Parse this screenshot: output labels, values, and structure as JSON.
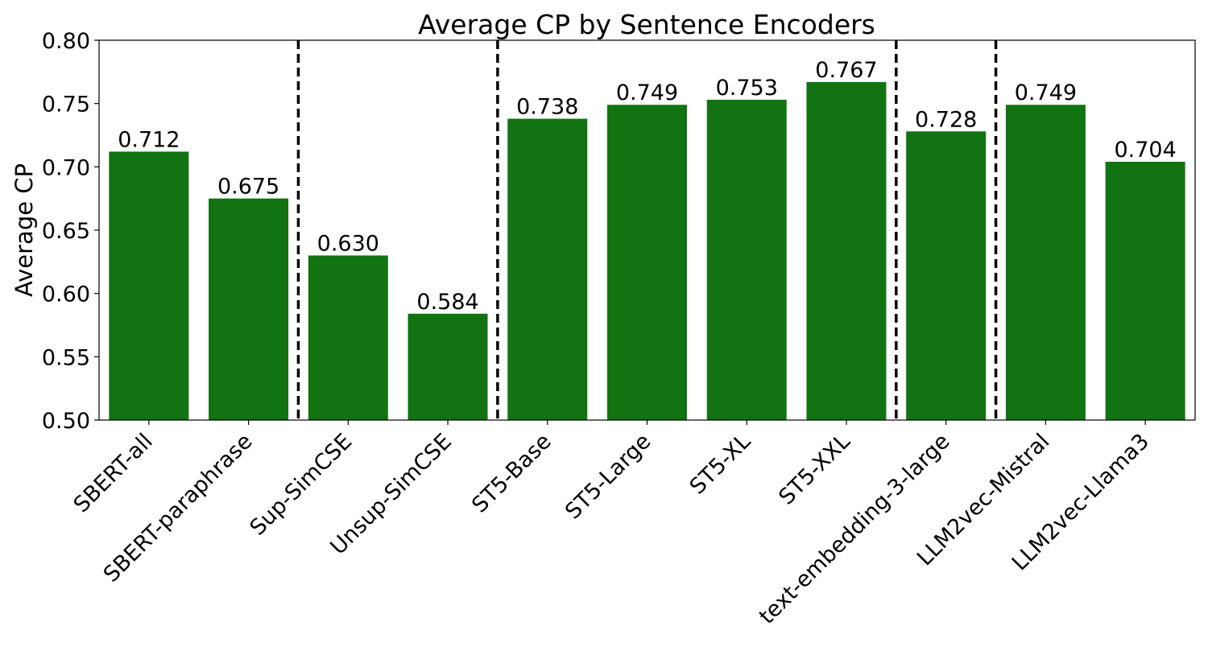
{
  "chart_data": {
    "type": "bar",
    "title": "Average CP by Sentence Encoders",
    "xlabel": "",
    "ylabel": "Average CP",
    "ylim": [
      0.5,
      0.8
    ],
    "yticks": [
      "0.50",
      "0.55",
      "0.60",
      "0.65",
      "0.70",
      "0.75",
      "0.80"
    ],
    "categories": [
      "SBERT-all",
      "SBERT-paraphrase",
      "Sup-SimCSE",
      "Unsup-SimCSE",
      "ST5-Base",
      "ST5-Large",
      "ST5-XL",
      "ST5-XXL",
      "text-embedding-3-large",
      "LLM2vec-Mistral",
      "LLM2vec-Llama3"
    ],
    "values": [
      0.712,
      0.675,
      0.63,
      0.584,
      0.738,
      0.749,
      0.753,
      0.767,
      0.728,
      0.749,
      0.704
    ],
    "value_labels": [
      "0.712",
      "0.675",
      "0.630",
      "0.584",
      "0.738",
      "0.749",
      "0.753",
      "0.767",
      "0.728",
      "0.749",
      "0.704"
    ],
    "group_separators_after_category": [
      "SBERT-paraphrase",
      "Unsup-SimCSE",
      "ST5-XXL",
      "text-embedding-3-large"
    ],
    "bar_color": "#117311",
    "grid": false,
    "legend": null
  }
}
